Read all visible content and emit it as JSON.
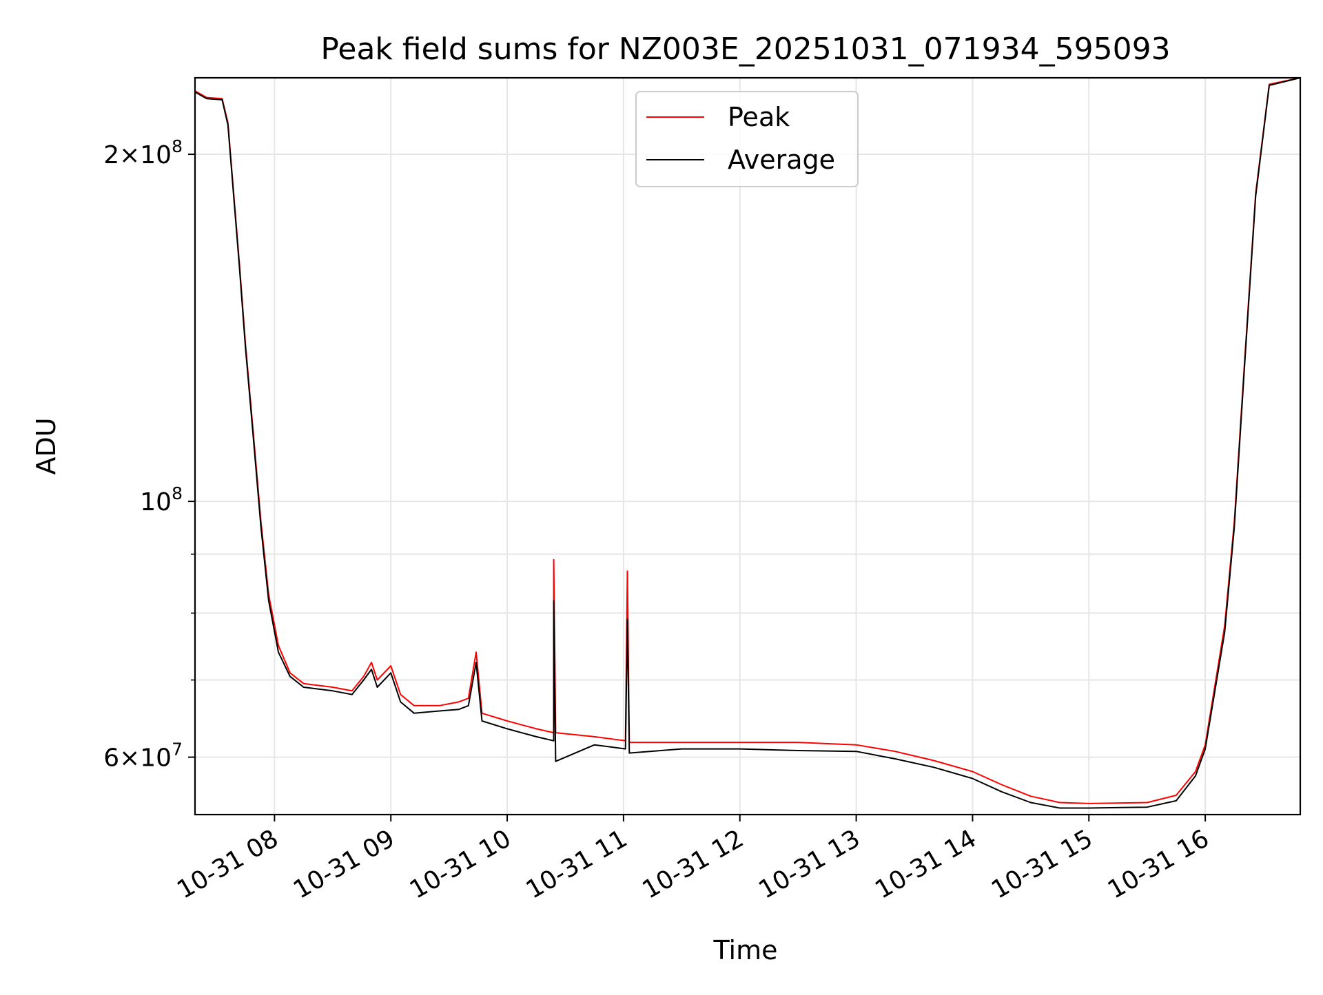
{
  "chart_data": {
    "type": "line",
    "title": "Peak field sums for NZ003E_20251031_071934_595093",
    "xlabel": "Time",
    "ylabel": "ADU",
    "y_scale": "log",
    "xlim": [
      "2025-10-31 07:19",
      "2025-10-31 16:49"
    ],
    "ylim": [
      53500000,
      233000000
    ],
    "x_ticks": [
      {
        "value": "2025-10-31 08:00",
        "label": "10-31 08"
      },
      {
        "value": "2025-10-31 09:00",
        "label": "10-31 09"
      },
      {
        "value": "2025-10-31 10:00",
        "label": "10-31 10"
      },
      {
        "value": "2025-10-31 11:00",
        "label": "10-31 11"
      },
      {
        "value": "2025-10-31 12:00",
        "label": "10-31 12"
      },
      {
        "value": "2025-10-31 13:00",
        "label": "10-31 13"
      },
      {
        "value": "2025-10-31 14:00",
        "label": "10-31 14"
      },
      {
        "value": "2025-10-31 15:00",
        "label": "10-31 15"
      },
      {
        "value": "2025-10-31 16:00",
        "label": "10-31 16"
      }
    ],
    "y_major_ticks": [
      {
        "value": 200000000,
        "mantissa": "2",
        "exp": "8"
      },
      {
        "value": 100000000,
        "mantissa": "",
        "exp": "8"
      },
      {
        "value": 60000000,
        "mantissa": "6",
        "exp": "7"
      }
    ],
    "y_minor_ticks": [
      70000000,
      80000000,
      90000000
    ],
    "grid": true,
    "legend_position": "top-center",
    "series": [
      {
        "name": "Peak",
        "color": "#ff0000",
        "points": [
          [
            "2025-10-31 07:19",
            227000000
          ],
          [
            "2025-10-31 07:25",
            224000000
          ],
          [
            "2025-10-31 07:33",
            223500000
          ],
          [
            "2025-10-31 07:36",
            213000000
          ],
          [
            "2025-10-31 07:42",
            160000000
          ],
          [
            "2025-10-31 07:45",
            137000000
          ],
          [
            "2025-10-31 07:49",
            115000000
          ],
          [
            "2025-10-31 07:53",
            96000000
          ],
          [
            "2025-10-31 07:57",
            83000000
          ],
          [
            "2025-10-31 08:02",
            75000000
          ],
          [
            "2025-10-31 08:08",
            71000000
          ],
          [
            "2025-10-31 08:15",
            69500000
          ],
          [
            "2025-10-31 08:30",
            69000000
          ],
          [
            "2025-10-31 08:40",
            68500000
          ],
          [
            "2025-10-31 08:46",
            70500000
          ],
          [
            "2025-10-31 08:50",
            72500000
          ],
          [
            "2025-10-31 08:53",
            70000000
          ],
          [
            "2025-10-31 09:00",
            72000000
          ],
          [
            "2025-10-31 09:05",
            68000000
          ],
          [
            "2025-10-31 09:12",
            66500000
          ],
          [
            "2025-10-31 09:25",
            66500000
          ],
          [
            "2025-10-31 09:35",
            67000000
          ],
          [
            "2025-10-31 09:40",
            67500000
          ],
          [
            "2025-10-31 09:44",
            74000000
          ],
          [
            "2025-10-31 09:47",
            65500000
          ],
          [
            "2025-10-31 10:00",
            64500000
          ],
          [
            "2025-10-31 10:15",
            63500000
          ],
          [
            "2025-10-31 10:24",
            63000000
          ],
          [
            "2025-10-31 10:24",
            89000000
          ],
          [
            "2025-10-31 10:25",
            63000000
          ],
          [
            "2025-10-31 10:45",
            62500000
          ],
          [
            "2025-10-31 11:01",
            62000000
          ],
          [
            "2025-10-31 11:02",
            87000000
          ],
          [
            "2025-10-31 11:03",
            61800000
          ],
          [
            "2025-10-31 11:30",
            61800000
          ],
          [
            "2025-10-31 12:00",
            61800000
          ],
          [
            "2025-10-31 12:30",
            61800000
          ],
          [
            "2025-10-31 13:00",
            61500000
          ],
          [
            "2025-10-31 13:20",
            60700000
          ],
          [
            "2025-10-31 13:40",
            59600000
          ],
          [
            "2025-10-31 14:00",
            58300000
          ],
          [
            "2025-10-31 14:15",
            56800000
          ],
          [
            "2025-10-31 14:30",
            55500000
          ],
          [
            "2025-10-31 14:45",
            54800000
          ],
          [
            "2025-10-31 15:00",
            54700000
          ],
          [
            "2025-10-31 15:30",
            54800000
          ],
          [
            "2025-10-31 15:45",
            55600000
          ],
          [
            "2025-10-31 15:55",
            58300000
          ],
          [
            "2025-10-31 16:00",
            61500000
          ],
          [
            "2025-10-31 16:10",
            78000000
          ],
          [
            "2025-10-31 16:15",
            96000000
          ],
          [
            "2025-10-31 16:20",
            130000000
          ],
          [
            "2025-10-31 16:26",
            185000000
          ],
          [
            "2025-10-31 16:33",
            230000000
          ],
          [
            "2025-10-31 16:49",
            233000000
          ]
        ]
      },
      {
        "name": "Average",
        "color": "#000000",
        "points": [
          [
            "2025-10-31 07:19",
            226500000
          ],
          [
            "2025-10-31 07:25",
            223500000
          ],
          [
            "2025-10-31 07:33",
            223000000
          ],
          [
            "2025-10-31 07:36",
            212000000
          ],
          [
            "2025-10-31 07:42",
            159000000
          ],
          [
            "2025-10-31 07:45",
            136000000
          ],
          [
            "2025-10-31 07:49",
            114000000
          ],
          [
            "2025-10-31 07:53",
            95000000
          ],
          [
            "2025-10-31 07:57",
            82000000
          ],
          [
            "2025-10-31 08:02",
            74000000
          ],
          [
            "2025-10-31 08:08",
            70500000
          ],
          [
            "2025-10-31 08:15",
            69000000
          ],
          [
            "2025-10-31 08:30",
            68500000
          ],
          [
            "2025-10-31 08:40",
            68000000
          ],
          [
            "2025-10-31 08:46",
            70000000
          ],
          [
            "2025-10-31 08:50",
            71500000
          ],
          [
            "2025-10-31 08:53",
            69000000
          ],
          [
            "2025-10-31 09:00",
            71000000
          ],
          [
            "2025-10-31 09:05",
            67000000
          ],
          [
            "2025-10-31 09:12",
            65500000
          ],
          [
            "2025-10-31 09:25",
            65800000
          ],
          [
            "2025-10-31 09:35",
            66000000
          ],
          [
            "2025-10-31 09:40",
            66500000
          ],
          [
            "2025-10-31 09:44",
            72500000
          ],
          [
            "2025-10-31 09:47",
            64500000
          ],
          [
            "2025-10-31 10:00",
            63500000
          ],
          [
            "2025-10-31 10:15",
            62500000
          ],
          [
            "2025-10-31 10:24",
            62000000
          ],
          [
            "2025-10-31 10:24",
            82000000
          ],
          [
            "2025-10-31 10:25",
            59500000
          ],
          [
            "2025-10-31 10:45",
            61500000
          ],
          [
            "2025-10-31 11:01",
            61000000
          ],
          [
            "2025-10-31 11:02",
            79000000
          ],
          [
            "2025-10-31 11:03",
            60500000
          ],
          [
            "2025-10-31 11:30",
            61000000
          ],
          [
            "2025-10-31 12:00",
            61000000
          ],
          [
            "2025-10-31 12:30",
            60800000
          ],
          [
            "2025-10-31 13:00",
            60700000
          ],
          [
            "2025-10-31 13:20",
            59800000
          ],
          [
            "2025-10-31 13:40",
            58800000
          ],
          [
            "2025-10-31 14:00",
            57500000
          ],
          [
            "2025-10-31 14:15",
            56000000
          ],
          [
            "2025-10-31 14:30",
            54800000
          ],
          [
            "2025-10-31 14:45",
            54200000
          ],
          [
            "2025-10-31 15:00",
            54200000
          ],
          [
            "2025-10-31 15:30",
            54300000
          ],
          [
            "2025-10-31 15:45",
            55000000
          ],
          [
            "2025-10-31 15:55",
            57800000
          ],
          [
            "2025-10-31 16:00",
            61000000
          ],
          [
            "2025-10-31 16:10",
            77000000
          ],
          [
            "2025-10-31 16:15",
            95000000
          ],
          [
            "2025-10-31 16:20",
            129000000
          ],
          [
            "2025-10-31 16:26",
            184000000
          ],
          [
            "2025-10-31 16:33",
            229500000
          ],
          [
            "2025-10-31 16:49",
            233000000
          ]
        ]
      }
    ]
  }
}
